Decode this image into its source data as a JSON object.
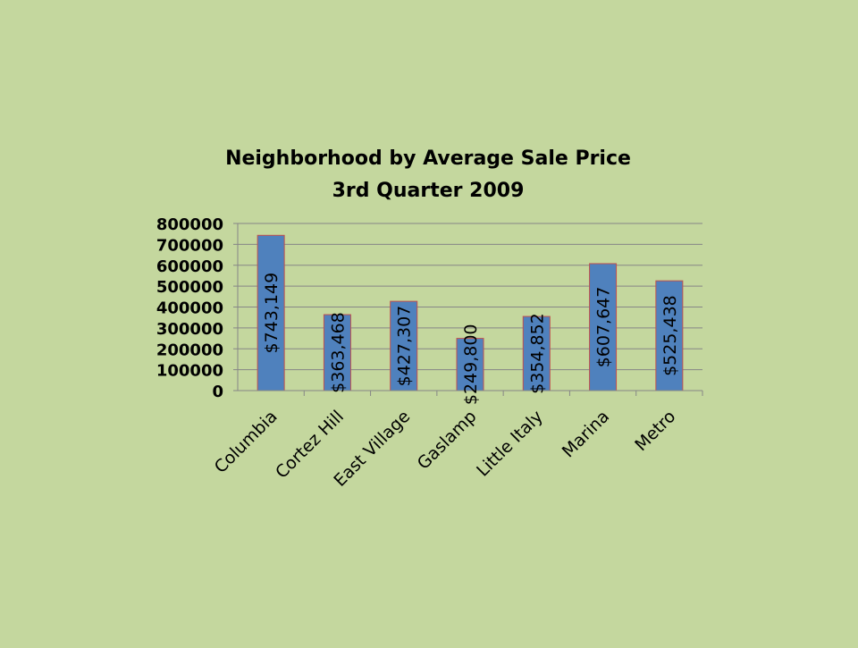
{
  "chart_data": {
    "type": "bar",
    "title": "Neighborhood by Average Sale Price",
    "subtitle": "3rd Quarter 2009",
    "categories": [
      "Columbia",
      "Cortez Hill",
      "East Village",
      "Gaslamp",
      "Little Italy",
      "Marina",
      "Metro"
    ],
    "values": [
      743149,
      363468,
      427307,
      249800,
      354852,
      607647,
      525438
    ],
    "data_labels": [
      "$743,149",
      "$363,468",
      "$427,307",
      "$249,800",
      "$354,852",
      "$607,647",
      "$525,438"
    ],
    "y_ticks": [
      "0",
      "100000",
      "200000",
      "300000",
      "400000",
      "500000",
      "600000",
      "700000",
      "800000"
    ],
    "ylim": [
      0,
      800000
    ],
    "grid": true,
    "legend": "none",
    "colors": {
      "background": "#c4d79e",
      "bar": "#4f81bd",
      "bar_edge": "#c0504d",
      "grid": "#868686",
      "text": "#000000"
    }
  }
}
